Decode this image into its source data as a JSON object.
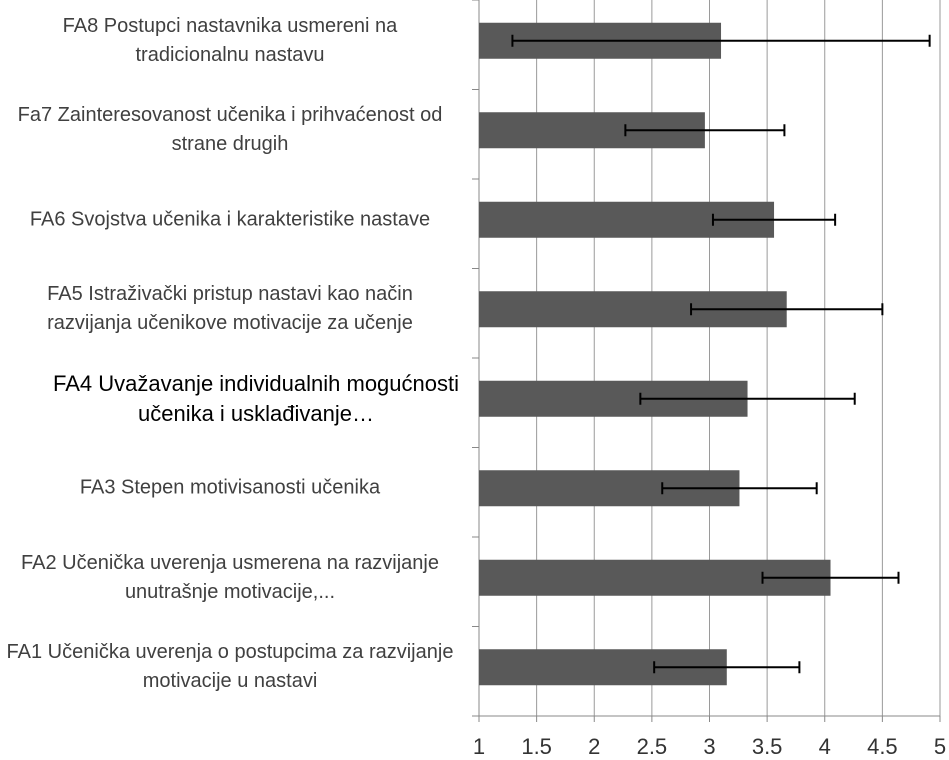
{
  "chart_data": {
    "type": "bar",
    "orientation": "horizontal",
    "categories": [
      "FA8 Postupci nastavnika usmereni na tradicionalnu nastavu",
      "Fa7 Zainteresovanost učenika i prihvaćenost od strane drugih",
      "FA6 Svojstva učenika i karakteristike nastave",
      "FA5 Istraživački pristup nastavi kao način razvijanja učenikove motivacije za učenje",
      "FA4 Uvažavanje individualnih mogućnosti učenika i usklađivanje…",
      "FA3 Stepen motivisanosti učenika",
      "FA2 Učenička uverenja usmerena na razvijanje unutrašnje motivacije,...",
      "FA1 Učenička uverenja o postupcima za razvijanje motivacije u nastavi"
    ],
    "values": [
      3.1,
      2.96,
      3.56,
      3.67,
      3.33,
      3.26,
      4.05,
      3.15
    ],
    "errors": [
      1.81,
      0.69,
      0.53,
      0.83,
      0.93,
      0.67,
      0.59,
      0.63
    ],
    "color": "#595959",
    "xlim": [
      1,
      5
    ],
    "xticks": [
      1,
      1.5,
      2,
      2.5,
      3,
      3.5,
      4,
      4.5,
      5
    ],
    "grid": true
  }
}
